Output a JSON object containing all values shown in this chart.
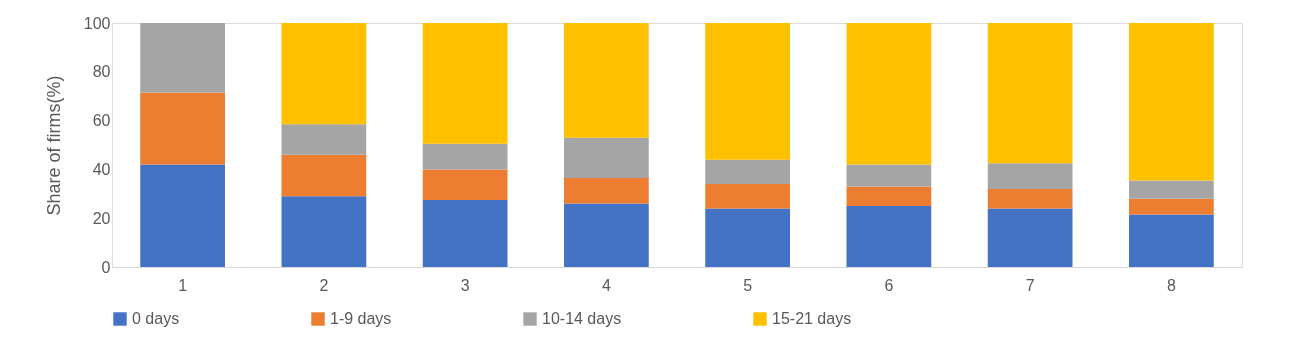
{
  "chart_data": {
    "type": "bar",
    "stacked": true,
    "ylabel": "Share of firms(%)",
    "categories": [
      "1",
      "2",
      "3",
      "4",
      "5",
      "6",
      "7",
      "8"
    ],
    "series": [
      {
        "name": "0 days",
        "color": "#4472c4",
        "values": [
          42,
          29,
          27.5,
          26,
          24,
          25,
          24,
          21.5
        ]
      },
      {
        "name": "1-9 days",
        "color": "#ed7d31",
        "values": [
          29.5,
          17,
          12.5,
          10.5,
          10,
          8,
          8,
          6.5
        ]
      },
      {
        "name": "10-14 days",
        "color": "#a5a5a5",
        "values": [
          28.5,
          12.5,
          10.5,
          16.5,
          10,
          9,
          10.5,
          7.5
        ]
      },
      {
        "name": "15-21 days",
        "color": "#ffc000",
        "values": [
          0,
          41.5,
          49.5,
          47,
          56,
          58,
          57.5,
          64.5
        ]
      }
    ],
    "ylim": [
      0,
      100
    ],
    "yticks": [
      0,
      20,
      40,
      60,
      80,
      100
    ],
    "grid": false,
    "legend": "bottom"
  }
}
